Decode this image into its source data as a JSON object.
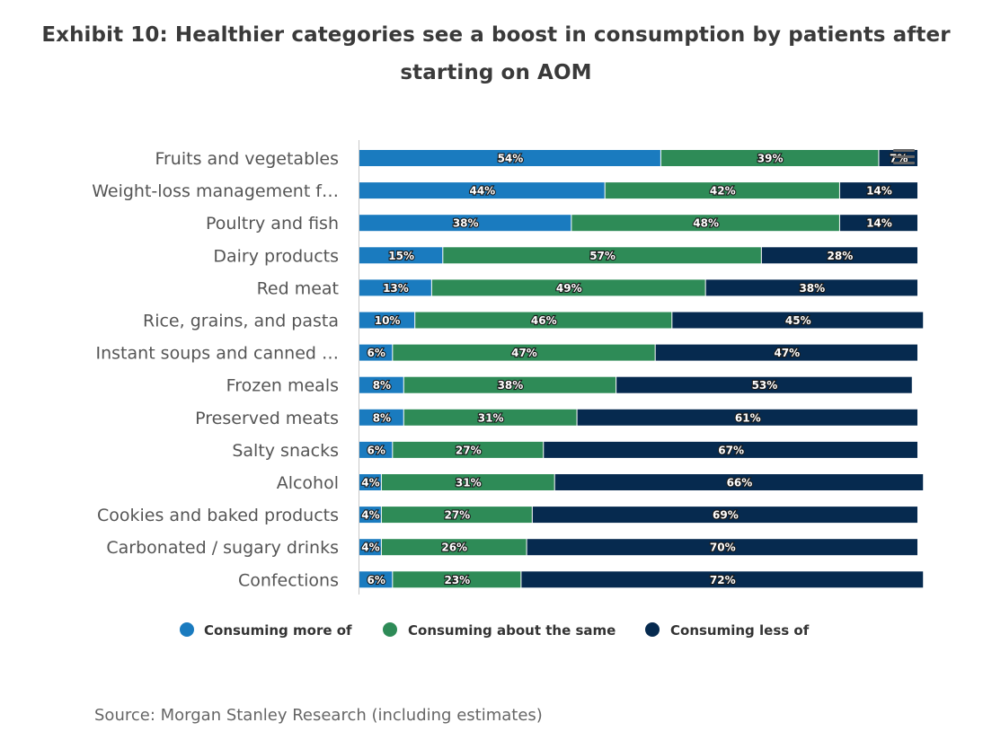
{
  "chart_data": {
    "type": "bar",
    "orientation": "horizontal",
    "stacked": true,
    "title": "Exhibit 10: Healthier categories see a boost in consumption by patients after starting on AOM",
    "title_lines": [
      "Exhibit 10: Healthier categories see a boost in consumption by patients after",
      "starting on AOM"
    ],
    "categories": [
      "Fruits and vegetables",
      "Weight-loss management f…",
      "Poultry and fish",
      "Dairy products",
      "Red meat",
      "Rice, grains, and pasta",
      "Instant soups and canned …",
      "Frozen meals",
      "Preserved meats",
      "Salty snacks",
      "Alcohol",
      "Cookies and baked products",
      "Carbonated / sugary drinks",
      "Confections"
    ],
    "series": [
      {
        "name": "Consuming more of",
        "color": "#1a7bbf",
        "values": [
          54,
          44,
          38,
          15,
          13,
          10,
          6,
          8,
          8,
          6,
          4,
          4,
          4,
          6
        ]
      },
      {
        "name": "Consuming about the same",
        "color": "#2e8b57",
        "values": [
          39,
          42,
          48,
          57,
          49,
          46,
          47,
          38,
          31,
          27,
          31,
          27,
          26,
          23
        ]
      },
      {
        "name": "Consuming less of",
        "color": "#062a4f",
        "values": [
          7,
          14,
          14,
          28,
          38,
          45,
          47,
          53,
          61,
          67,
          66,
          69,
          70,
          72
        ]
      }
    ],
    "value_suffix": "%",
    "xlim": [
      0,
      100
    ],
    "legend_position": "bottom",
    "grid": false
  },
  "source": "Source: Morgan Stanley Research (including estimates)",
  "icons": {
    "menu": "hamburger-menu-icon"
  }
}
